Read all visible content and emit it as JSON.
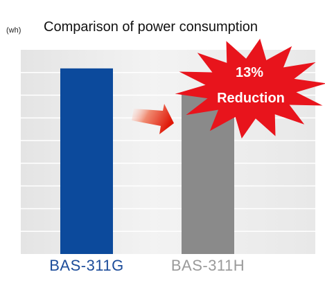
{
  "chart_data": {
    "type": "bar",
    "title": "Comparison of power consumption",
    "ylabel": "(wh)",
    "categories": [
      "BAS-311G",
      "BAS-311H"
    ],
    "values": [
      100,
      87
    ],
    "ylim": [
      0,
      110
    ],
    "grid": true,
    "bar_colors": [
      "#0c4a9c",
      "#8a8a8a"
    ],
    "label_colors": [
      "#1c4c9a",
      "#9a9a9a"
    ],
    "annotation": {
      "line1": "13%",
      "line2": "Reduction",
      "burst_color": "#e8141c",
      "arrow_color": "#e82010"
    }
  }
}
